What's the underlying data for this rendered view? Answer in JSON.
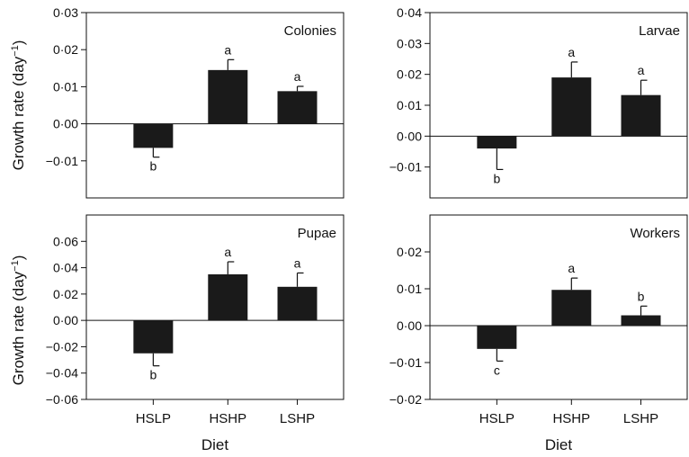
{
  "figure": {
    "ylabel": "Growth rate (day",
    "ylabel_superscript": "−1",
    "xlabel": "Diet"
  },
  "chart_data": [
    {
      "type": "bar",
      "panel_label": "Colonies",
      "categories": [
        "HSLP",
        "HSHP",
        "LSHP"
      ],
      "values": [
        -0.0065,
        0.0145,
        0.0088
      ],
      "errors": [
        0.0025,
        0.0028,
        0.0013
      ],
      "significance": [
        "b",
        "a",
        "a"
      ],
      "ylim": [
        -0.02,
        0.03
      ],
      "yticks": [
        -0.01,
        0.0,
        0.01,
        0.02,
        0.03
      ],
      "ytick_labels": [
        "−0·01",
        "0·00",
        "0·01",
        "0·02",
        "0·03"
      ],
      "show_xtick_labels": false,
      "bar_color": "#1a1a1a"
    },
    {
      "type": "bar",
      "panel_label": "Larvae",
      "categories": [
        "HSLP",
        "HSHP",
        "LSHP"
      ],
      "values": [
        -0.004,
        0.019,
        0.0133
      ],
      "errors": [
        0.0068,
        0.005,
        0.0048
      ],
      "significance": [
        "b",
        "a",
        "a"
      ],
      "ylim": [
        -0.02,
        0.04
      ],
      "yticks": [
        -0.01,
        0.0,
        0.01,
        0.02,
        0.03,
        0.04
      ],
      "ytick_labels": [
        "−0·01",
        "0·00",
        "0·01",
        "0·02",
        "0·03",
        "0·04"
      ],
      "show_xtick_labels": false,
      "bar_color": "#1a1a1a"
    },
    {
      "type": "bar",
      "panel_label": "Pupae",
      "categories": [
        "HSLP",
        "HSHP",
        "LSHP"
      ],
      "values": [
        -0.025,
        0.035,
        0.0255
      ],
      "errors": [
        0.0095,
        0.0095,
        0.0105
      ],
      "significance": [
        "b",
        "a",
        "a"
      ],
      "ylim": [
        -0.06,
        0.08
      ],
      "yticks": [
        -0.06,
        -0.04,
        -0.02,
        0.0,
        0.02,
        0.04,
        0.06
      ],
      "ytick_labels": [
        "−0·06",
        "−0·04",
        "−0·02",
        "0·00",
        "0·02",
        "0·04",
        "0·06"
      ],
      "show_xtick_labels": true,
      "bar_color": "#1a1a1a"
    },
    {
      "type": "bar",
      "panel_label": "Workers",
      "categories": [
        "HSLP",
        "HSHP",
        "LSHP"
      ],
      "values": [
        -0.0063,
        0.0097,
        0.0028
      ],
      "errors": [
        0.0033,
        0.0032,
        0.0025
      ],
      "significance": [
        "c",
        "a",
        "b"
      ],
      "ylim": [
        -0.02,
        0.03
      ],
      "yticks": [
        -0.02,
        -0.01,
        0.0,
        0.01,
        0.02
      ],
      "ytick_labels": [
        "−0·02",
        "−0·01",
        "0·00",
        "0·01",
        "0·02"
      ],
      "show_xtick_labels": true,
      "bar_color": "#1a1a1a"
    }
  ]
}
